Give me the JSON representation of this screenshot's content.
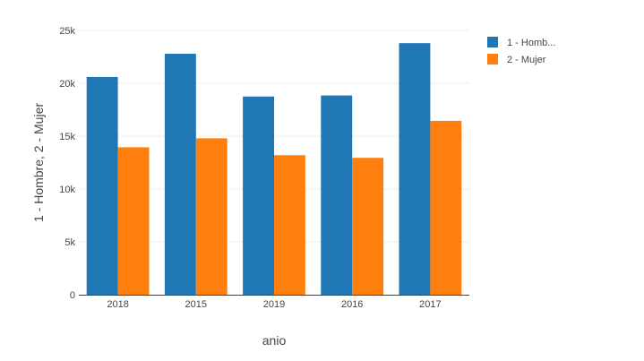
{
  "chart_data": {
    "type": "bar",
    "categories": [
      "2018",
      "2015",
      "2019",
      "2016",
      "2017"
    ],
    "series": [
      {
        "name": "1 - Homb...",
        "values": [
          20600,
          22800,
          18750,
          18850,
          23800
        ],
        "color": "#1f77b4"
      },
      {
        "name": "2 - Mujer",
        "values": [
          13950,
          14800,
          13200,
          12950,
          16450
        ],
        "color": "#ff7f0e"
      }
    ],
    "xlabel": "anio",
    "ylabel": "1 - Hombre, 2 - Mujer",
    "ylim": [
      0,
      25000
    ],
    "yticks": [
      {
        "value": 0,
        "label": "0"
      },
      {
        "value": 5000,
        "label": "5k"
      },
      {
        "value": 10000,
        "label": "10k"
      },
      {
        "value": 15000,
        "label": "15k"
      },
      {
        "value": 20000,
        "label": "20k"
      },
      {
        "value": 25000,
        "label": "25k"
      }
    ],
    "grid": true,
    "legend": "top-right"
  }
}
